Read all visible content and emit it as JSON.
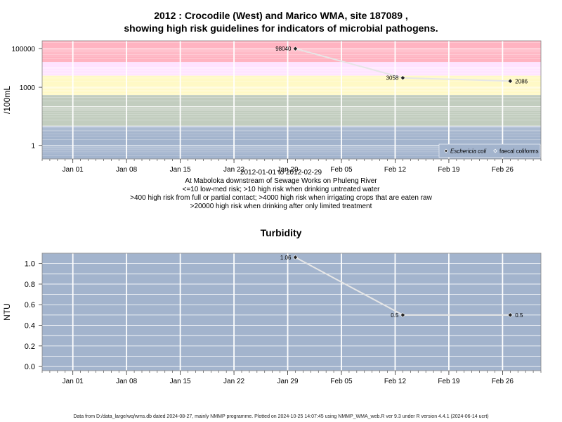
{
  "header": {
    "title_line1": "2012 : Crocodile (West) and Marico WMA, site 187089 ,",
    "title_line2": "showing high risk guidelines for indicators of microbial pathogens."
  },
  "captions": {
    "date_range": "2012-01-01 to 2012-02-29",
    "location": "At Maboloka downstream of Sewage Works on Phuleng River",
    "guideline_1": "<=10 low-med risk; >10 high risk when drinking untreated water",
    "guideline_2": ">400 high risk from full or partial contact; >4000 high risk when irrigating crops that are eaten raw",
    "guideline_3": ">20000 high risk when drinking after only limited treatment"
  },
  "footer": {
    "text": "Data from D:/data_large/wq/wms.db dated 2024-08-27, mainly NMMP programme. Plotted on 2024-10-25 14:07:45 using NMMP_WMA_web.R ver 9.3 under R version 4.4.1 (2024-06-14 ucrt)"
  },
  "colors": {
    "band_red": "#ffb3c1",
    "band_pink": "#ffe3ff",
    "band_yellow": "#fff9c6",
    "band_green": "#c2cdbf",
    "band_blue": "#a3b4cd",
    "grid": "#ffffff",
    "line": "#e6e6e6",
    "point": "#222222"
  },
  "chart_data": [
    {
      "type": "line",
      "title": "",
      "ylabel": "/100mL",
      "yscale": "log10",
      "ylim": [
        0.2,
        250000
      ],
      "xlim": [
        "2011-12-28",
        "2012-03-02"
      ],
      "x_ticks": [
        "2012-01-01",
        "2012-01-08",
        "2012-01-15",
        "2012-01-22",
        "2012-01-29",
        "2012-02-05",
        "2012-02-12",
        "2012-02-19",
        "2012-02-26"
      ],
      "x_tick_labels": [
        "Jan 01",
        "Jan 08",
        "Jan 15",
        "Jan 22",
        "Jan 29",
        "Feb 05",
        "Feb 12",
        "Feb 19",
        "Feb 26"
      ],
      "y_ticks": [
        1,
        1000,
        100000
      ],
      "y_tick_labels": [
        "1",
        "1000",
        "100000"
      ],
      "grid": true,
      "legend_position": "bottom-right",
      "risk_bands": [
        {
          "from": 20000,
          "to": 250000,
          "color_key": "band_red"
        },
        {
          "from": 4000,
          "to": 20000,
          "color_key": "band_pink"
        },
        {
          "from": 400,
          "to": 4000,
          "color_key": "band_yellow"
        },
        {
          "from": 10,
          "to": 400,
          "color_key": "band_green"
        },
        {
          "from": 0.2,
          "to": 10,
          "color_key": "band_blue"
        }
      ],
      "legend": [
        {
          "label": "Eschericia coli",
          "marker": "filled-diamond"
        },
        {
          "label": "faecal coliforms",
          "marker": "open-diamond"
        }
      ],
      "series": [
        {
          "name": "Eschericia coli",
          "x": [
            "2012-01-30",
            "2012-02-13",
            "2012-02-27"
          ],
          "values": [
            98040,
            3058,
            2086
          ],
          "labels": [
            "98040",
            "3058",
            "2086"
          ]
        }
      ]
    },
    {
      "type": "line",
      "title": "Turbidity",
      "ylabel": "NTU",
      "ylim": [
        -0.04,
        1.1
      ],
      "xlim": [
        "2011-12-28",
        "2012-03-02"
      ],
      "x_ticks": [
        "2012-01-01",
        "2012-01-08",
        "2012-01-15",
        "2012-01-22",
        "2012-01-29",
        "2012-02-05",
        "2012-02-12",
        "2012-02-19",
        "2012-02-26"
      ],
      "x_tick_labels": [
        "Jan 01",
        "Jan 08",
        "Jan 15",
        "Jan 22",
        "Jan 29",
        "Feb 05",
        "Feb 12",
        "Feb 19",
        "Feb 26"
      ],
      "y_ticks": [
        0,
        0.2,
        0.4,
        0.6,
        0.8,
        1.0
      ],
      "y_tick_labels": [
        "0.0",
        "0.2",
        "0.4",
        "0.6",
        "0.8",
        "1.0"
      ],
      "grid": true,
      "series": [
        {
          "x": [
            "2012-01-30",
            "2012-02-13",
            "2012-02-27"
          ],
          "values": [
            1.06,
            0.5,
            0.5
          ],
          "labels": [
            "1.06",
            "0.5",
            "0.5"
          ]
        }
      ]
    }
  ]
}
